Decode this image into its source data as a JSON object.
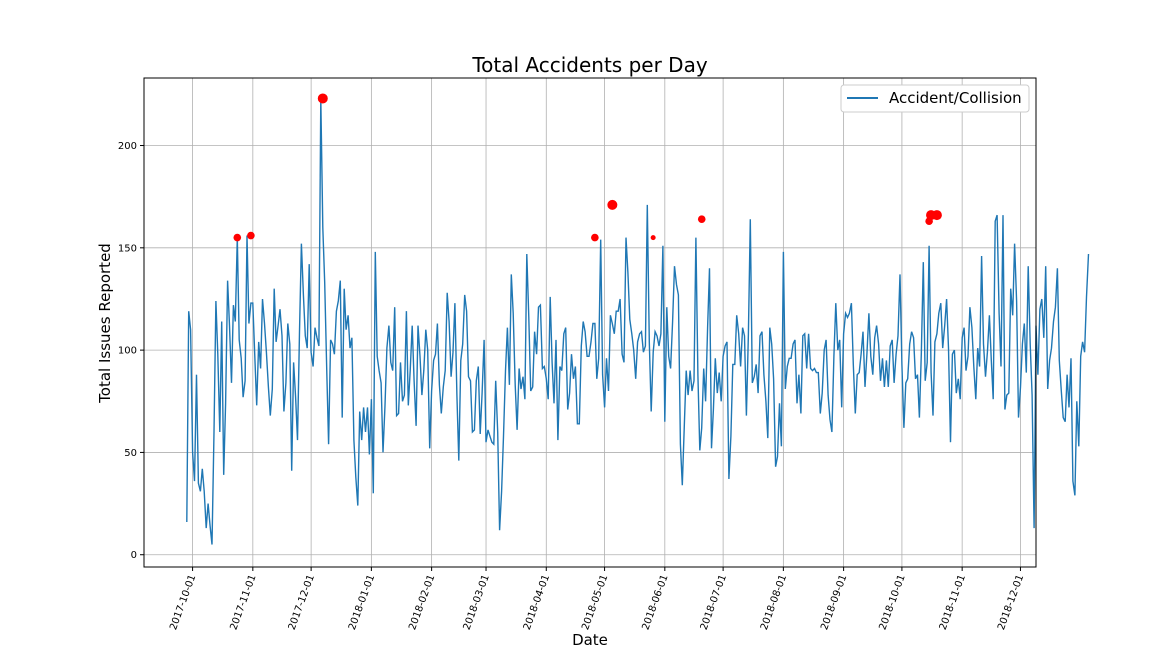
{
  "chart_data": {
    "type": "line",
    "title": "Total Accidents per Day",
    "xlabel": "Date",
    "ylabel": "Total Issues Reported",
    "xlim": [
      "2017-09-06",
      "2018-12-09"
    ],
    "ylim": [
      -6,
      233
    ],
    "grid": true,
    "legend_position": "top-right",
    "x_ticks": [
      "2017-10-01",
      "2017-11-01",
      "2017-12-01",
      "2018-01-01",
      "2018-02-01",
      "2018-03-01",
      "2018-04-01",
      "2018-05-01",
      "2018-06-01",
      "2018-07-01",
      "2018-08-01",
      "2018-09-01",
      "2018-10-01",
      "2018-11-01",
      "2018-12-01"
    ],
    "y_ticks": [
      0,
      50,
      100,
      150,
      200
    ],
    "colors": {
      "line": "#1f77b4",
      "marker": "#ff0000",
      "grid": "#b0b0b0"
    },
    "series": [
      {
        "name": "Accident/Collision",
        "start_date": "2017-09-28",
        "values": [
          16,
          119,
          110,
          50,
          36,
          88,
          35,
          31,
          42,
          31,
          13,
          25,
          14,
          5,
          60,
          124,
          98,
          60,
          114,
          39,
          74,
          134,
          112,
          84,
          122,
          114,
          155,
          105,
          96,
          77,
          85,
          156,
          113,
          123,
          123,
          97,
          73,
          104,
          91,
          125,
          113,
          99,
          82,
          68,
          81,
          130,
          104,
          112,
          120,
          107,
          70,
          84,
          113,
          103,
          41,
          94,
          77,
          56,
          109,
          152,
          127,
          107,
          101,
          142,
          99,
          92,
          111,
          106,
          102,
          223,
          160,
          133,
          91,
          54,
          105,
          103,
          98,
          119,
          124,
          134,
          67,
          130,
          110,
          117,
          101,
          106,
          56,
          38,
          24,
          70,
          56,
          72,
          60,
          72,
          49,
          76,
          30,
          148,
          97,
          90,
          84,
          50,
          73,
          101,
          112,
          94,
          90,
          121,
          68,
          69,
          94,
          75,
          78,
          119,
          73,
          90,
          112,
          85,
          63,
          112,
          97,
          78,
          90,
          110,
          100,
          52,
          80,
          95,
          98,
          113,
          83,
          69,
          82,
          90,
          128,
          114,
          87,
          99,
          123,
          78,
          46,
          95,
          103,
          127,
          119,
          87,
          85,
          60,
          61,
          85,
          92,
          59,
          79,
          105,
          55,
          61,
          58,
          55,
          54,
          85,
          60,
          12,
          31,
          58,
          90,
          111,
          83,
          137,
          118,
          83,
          61,
          91,
          81,
          87,
          76,
          147,
          116,
          80,
          82,
          109,
          98,
          121,
          122,
          91,
          92,
          86,
          76,
          126,
          94,
          74,
          105,
          56,
          92,
          90,
          108,
          111,
          71,
          79,
          98,
          86,
          92,
          64,
          64,
          102,
          114,
          109,
          97,
          97,
          104,
          113,
          113,
          86,
          96,
          154,
          88,
          72,
          96,
          80,
          117,
          113,
          108,
          119,
          119,
          125,
          98,
          94,
          155,
          138,
          115,
          108,
          100,
          86,
          104,
          108,
          109,
          99,
          102,
          171,
          104,
          70,
          99,
          109,
          107,
          102,
          108,
          151,
          65,
          121,
          97,
          91,
          114,
          141,
          132,
          127,
          54,
          34,
          63,
          90,
          78,
          90,
          80,
          85,
          155,
          88,
          51,
          62,
          91,
          75,
          111,
          140,
          52,
          71,
          96,
          79,
          89,
          75,
          97,
          102,
          104,
          37,
          58,
          93,
          93,
          117,
          108,
          92,
          111,
          107,
          68,
          108,
          164,
          84,
          87,
          93,
          79,
          107,
          109,
          88,
          75,
          57,
          111,
          103,
          86,
          43,
          48,
          74,
          53,
          148,
          81,
          92,
          96,
          96,
          103,
          105,
          74,
          88,
          69,
          107,
          108,
          91,
          108,
          91,
          90,
          91,
          89,
          89,
          69,
          79,
          100,
          105,
          78,
          66,
          60,
          97,
          123,
          100,
          105,
          72,
          108,
          118,
          116,
          118,
          123,
          93,
          69,
          88,
          89,
          98,
          109,
          82,
          98,
          118,
          97,
          88,
          106,
          112,
          103,
          85,
          96,
          82,
          95,
          82,
          102,
          105,
          84,
          98,
          107,
          137,
          93,
          62,
          84,
          86,
          103,
          109,
          106,
          86,
          88,
          67,
          98,
          143,
          85,
          94,
          151,
          89,
          68,
          104,
          108,
          118,
          123,
          101,
          112,
          125,
          101,
          55,
          98,
          100,
          79,
          86,
          76,
          106,
          111,
          90,
          97,
          121,
          111,
          92,
          76,
          101,
          92,
          146,
          103,
          87,
          99,
          117,
          95,
          76,
          163,
          166,
          118,
          92,
          166,
          71,
          78,
          79,
          130,
          117,
          152,
          124,
          67,
          82,
          103,
          113,
          89,
          141,
          103,
          78,
          13,
          112,
          88,
          120,
          125,
          106,
          141,
          81,
          95,
          101,
          114,
          121,
          140,
          95,
          80,
          67,
          65,
          88,
          72,
          96,
          36,
          29,
          75,
          53,
          97,
          104,
          99,
          126,
          147
        ]
      }
    ],
    "highlight_points": [
      {
        "date": "2017-10-24",
        "value": 155,
        "size": "medium"
      },
      {
        "date": "2017-10-31",
        "value": 156,
        "size": "medium"
      },
      {
        "date": "2017-12-07",
        "value": 223,
        "size": "large"
      },
      {
        "date": "2018-04-26",
        "value": 155,
        "size": "medium"
      },
      {
        "date": "2018-05-05",
        "value": 171,
        "size": "large"
      },
      {
        "date": "2018-05-26",
        "value": 155,
        "size": "small"
      },
      {
        "date": "2018-06-20",
        "value": 164,
        "size": "medium"
      },
      {
        "date": "2018-10-15",
        "value": 163,
        "size": "medium"
      },
      {
        "date": "2018-10-16",
        "value": 166,
        "size": "large"
      },
      {
        "date": "2018-10-19",
        "value": 166,
        "size": "large"
      }
    ]
  }
}
